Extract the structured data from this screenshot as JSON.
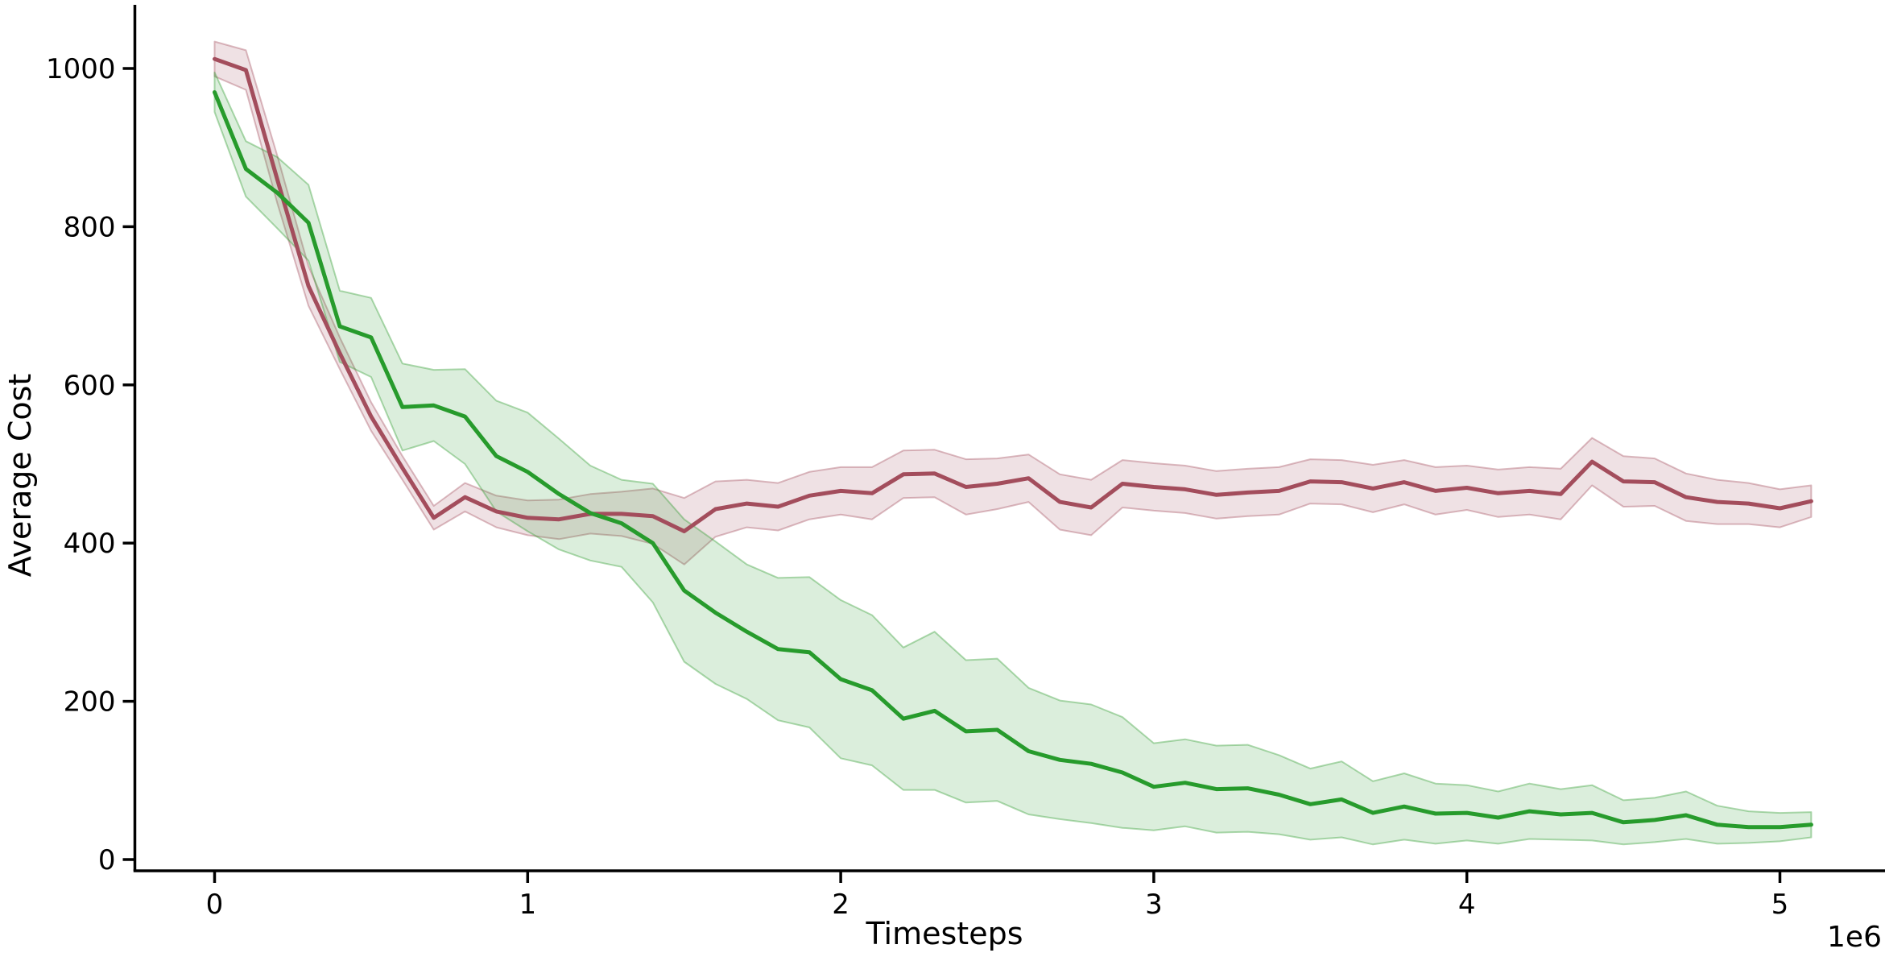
{
  "chart_data": {
    "type": "line",
    "title": "",
    "xlabel": "Timesteps",
    "ylabel": "Average Cost",
    "x_offset_label": "1e6",
    "x_tick_labels": [
      "0",
      "1",
      "2",
      "3",
      "4",
      "5"
    ],
    "x_tick_values_1e6": [
      0,
      1,
      2,
      3,
      4,
      5
    ],
    "y_tick_labels": [
      "0",
      "200",
      "400",
      "600",
      "800",
      "1000"
    ],
    "y_tick_values": [
      0,
      200,
      400,
      600,
      800,
      1000
    ],
    "xlim_1e6": [
      -0.25,
      5.35
    ],
    "ylim": [
      -13,
      1080
    ],
    "grid": false,
    "legend": "none",
    "x_values_1e6": [
      0,
      0.1,
      0.2,
      0.3,
      0.4,
      0.5,
      0.6,
      0.7,
      0.8,
      0.9,
      1.0,
      1.1,
      1.2,
      1.3,
      1.4,
      1.5,
      1.6,
      1.7,
      1.8,
      1.9,
      2.0,
      2.1,
      2.2,
      2.3,
      2.4,
      2.5,
      2.6,
      2.7,
      2.8,
      2.9,
      3.0,
      3.1,
      3.2,
      3.3,
      3.4,
      3.5,
      3.6,
      3.7,
      3.8,
      3.9,
      4.0,
      4.1,
      4.2,
      4.3,
      4.4,
      4.5,
      4.6,
      4.7,
      4.8,
      4.9,
      5.0,
      5.1
    ],
    "series": [
      {
        "key": "red_series",
        "line_color": "#a34d5c",
        "band_fill": "rgba(163,77,92,0.17)",
        "band_edge": "rgba(163,77,92,0.38)",
        "mean": [
          1012,
          998,
          860,
          725,
          640,
          560,
          495,
          432,
          458,
          440,
          432,
          430,
          437,
          437,
          434,
          415,
          443,
          450,
          446,
          460,
          466,
          463,
          487,
          488,
          471,
          475,
          482,
          452,
          445,
          475,
          471,
          468,
          461,
          464,
          466,
          478,
          477,
          469,
          477,
          466,
          470,
          463,
          466,
          462,
          503,
          478,
          477,
          458,
          452,
          450,
          444,
          453
        ],
        "band_halfwidth": [
          22,
          25,
          30,
          25,
          20,
          18,
          15,
          15,
          18,
          20,
          22,
          25,
          25,
          28,
          35,
          42,
          35,
          30,
          30,
          30,
          30,
          33,
          30,
          30,
          35,
          32,
          30,
          35,
          35,
          30,
          30,
          30,
          30,
          30,
          30,
          28,
          28,
          30,
          28,
          30,
          28,
          30,
          30,
          32,
          30,
          32,
          30,
          30,
          28,
          26,
          24,
          20
        ]
      },
      {
        "key": "green_series",
        "line_color": "#279b2c",
        "band_fill": "rgba(44,154,46,0.17)",
        "band_edge": "rgba(44,154,46,0.38)",
        "mean": [
          970,
          873,
          843,
          805,
          674,
          660,
          572,
          574,
          560,
          510,
          490,
          462,
          438,
          425,
          400,
          340,
          312,
          288,
          266,
          262,
          228,
          214,
          178,
          188,
          162,
          164,
          137,
          126,
          121,
          110,
          92,
          97,
          89,
          90,
          82,
          70,
          76,
          59,
          67,
          58,
          59,
          53,
          61,
          57,
          59,
          47,
          50,
          56,
          44,
          41,
          41,
          44
        ],
        "band_halfwidth": [
          25,
          35,
          45,
          48,
          45,
          50,
          55,
          45,
          60,
          70,
          75,
          70,
          60,
          55,
          75,
          90,
          90,
          85,
          90,
          95,
          100,
          95,
          90,
          100,
          90,
          90,
          80,
          75,
          75,
          70,
          55,
          55,
          55,
          55,
          50,
          45,
          48,
          40,
          42,
          38,
          35,
          33,
          35,
          32,
          35,
          28,
          28,
          30,
          24,
          20,
          18,
          16
        ]
      }
    ]
  }
}
